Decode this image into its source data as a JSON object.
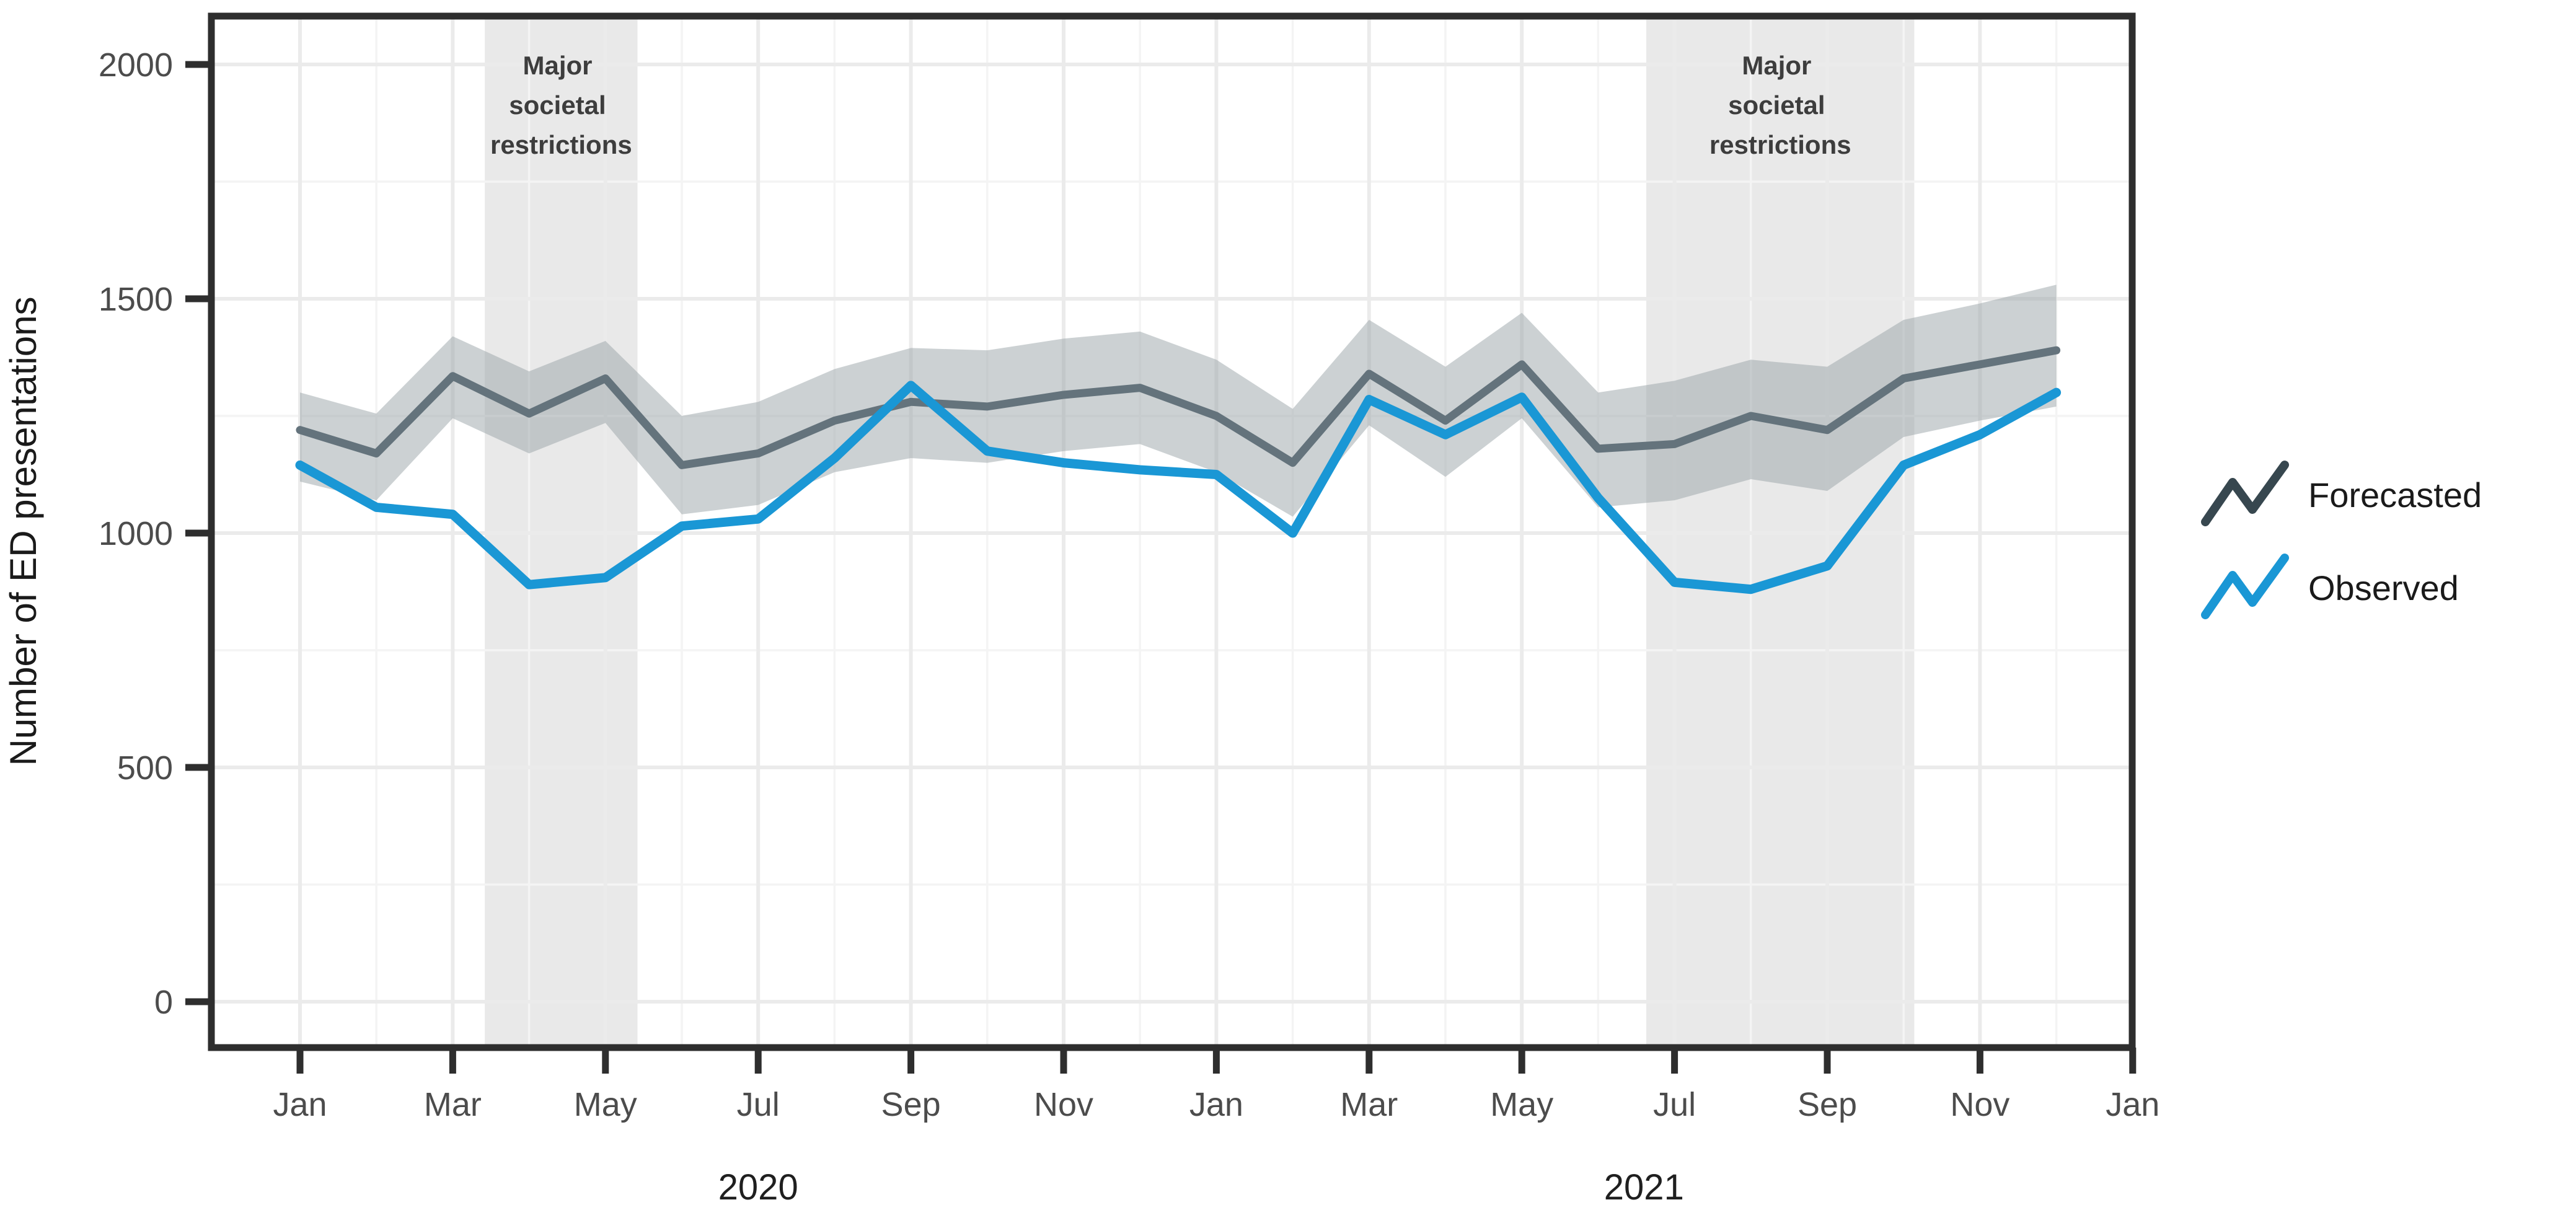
{
  "chart_data": {
    "type": "line",
    "title": "",
    "xlabel": "",
    "ylabel": "Number of ED presentations",
    "y_ticks": [
      0,
      500,
      1000,
      1500,
      2000
    ],
    "ylim": [
      -100,
      2100
    ],
    "grid": "on",
    "legend_position": "right",
    "months": [
      "Jan 2020",
      "Feb 2020",
      "Mar 2020",
      "Apr 2020",
      "May 2020",
      "Jun 2020",
      "Jul 2020",
      "Aug 2020",
      "Sep 2020",
      "Oct 2020",
      "Nov 2020",
      "Dec 2020",
      "Jan 2021",
      "Feb 2021",
      "Mar 2021",
      "Apr 2021",
      "May 2021",
      "Jun 2021",
      "Jul 2021",
      "Aug 2021",
      "Sep 2021",
      "Oct 2021",
      "Nov 2021",
      "Dec 2021"
    ],
    "x_ticks": [
      {
        "label": "Jan",
        "month_index": 0
      },
      {
        "label": "Mar",
        "month_index": 2
      },
      {
        "label": "May",
        "month_index": 4
      },
      {
        "label": "Jul",
        "month_index": 6
      },
      {
        "label": "Sep",
        "month_index": 8
      },
      {
        "label": "Nov",
        "month_index": 10
      },
      {
        "label": "Jan",
        "month_index": 12
      },
      {
        "label": "Mar",
        "month_index": 14
      },
      {
        "label": "May",
        "month_index": 16
      },
      {
        "label": "Jul",
        "month_index": 18
      },
      {
        "label": "Sep",
        "month_index": 20
      },
      {
        "label": "Nov",
        "month_index": 22
      },
      {
        "label": "Jan",
        "month_index": 24
      }
    ],
    "year_labels": [
      {
        "text": "2020",
        "month_index": 6.0
      },
      {
        "text": "2021",
        "month_index": 17.6
      }
    ],
    "series": [
      {
        "name": "Forecasted",
        "color": "#64737C",
        "legend_color": "#37474F",
        "values": [
          1220,
          1170,
          1335,
          1255,
          1330,
          1145,
          1170,
          1240,
          1280,
          1270,
          1295,
          1310,
          1250,
          1150,
          1340,
          1240,
          1360,
          1180,
          1190,
          1250,
          1220,
          1330,
          1360,
          1390
        ]
      },
      {
        "name": "Observed",
        "color": "#1A97D5",
        "legend_color": "#1A97D5",
        "values": [
          1145,
          1055,
          1040,
          890,
          905,
          1015,
          1030,
          1160,
          1315,
          1175,
          1150,
          1135,
          1125,
          1000,
          1285,
          1210,
          1290,
          1075,
          895,
          880,
          930,
          1145,
          1210,
          1300
        ]
      }
    ],
    "forecast_interval": {
      "lower": [
        1110,
        1070,
        1245,
        1170,
        1235,
        1040,
        1060,
        1130,
        1160,
        1150,
        1175,
        1190,
        1130,
        1035,
        1230,
        1120,
        1245,
        1055,
        1070,
        1115,
        1090,
        1205,
        1240,
        1270
      ],
      "upper": [
        1300,
        1255,
        1420,
        1345,
        1410,
        1250,
        1280,
        1350,
        1395,
        1390,
        1415,
        1430,
        1370,
        1265,
        1455,
        1355,
        1470,
        1300,
        1325,
        1370,
        1355,
        1455,
        1490,
        1530
      ],
      "fill": "#99A3A8",
      "opacity": 0.5
    },
    "restriction_bands": [
      {
        "start_month_index": 2.42,
        "end_month_index": 4.42
      },
      {
        "start_month_index": 17.63,
        "end_month_index": 21.14
      }
    ],
    "restriction_label_lines": [
      "Major",
      "societal",
      "restrictions"
    ],
    "band_fill": "#E9E9E9",
    "colors": {
      "grid_major": "#EBEBEB",
      "grid_minor": "#F4F4F4",
      "panel_border": "#2E2E2E",
      "tick": "#2E2E2E"
    }
  }
}
